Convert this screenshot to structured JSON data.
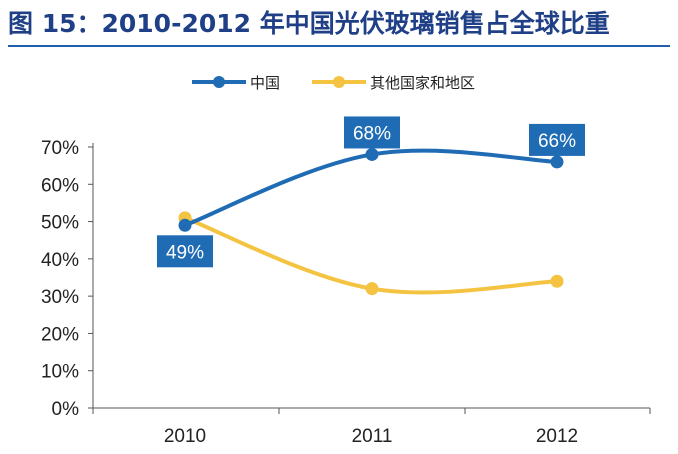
{
  "title": "图 15：2010-2012 年中国光伏玻璃销售占全球比重",
  "colors": {
    "title": "#1f3f86",
    "china": "#1f6cb5",
    "others": "#f5c342",
    "label_bg": "#1f6cb5"
  },
  "chart_data": {
    "type": "line",
    "categories": [
      "2010",
      "2011",
      "2012"
    ],
    "series": [
      {
        "name": "中国",
        "values": [
          49,
          68,
          66
        ],
        "color": "#1f6cb5"
      },
      {
        "name": "其他国家和地区",
        "values": [
          51,
          32,
          34
        ],
        "color": "#f5c342"
      }
    ],
    "data_labels": [
      {
        "series": 0,
        "point": 0,
        "text": "49%"
      },
      {
        "series": 0,
        "point": 1,
        "text": "68%"
      },
      {
        "series": 0,
        "point": 2,
        "text": "66%"
      }
    ],
    "yticks": [
      "0%",
      "10%",
      "20%",
      "30%",
      "40%",
      "50%",
      "60%",
      "70%"
    ],
    "ylim": [
      0,
      70
    ],
    "legend_position": "top",
    "grid": false
  }
}
